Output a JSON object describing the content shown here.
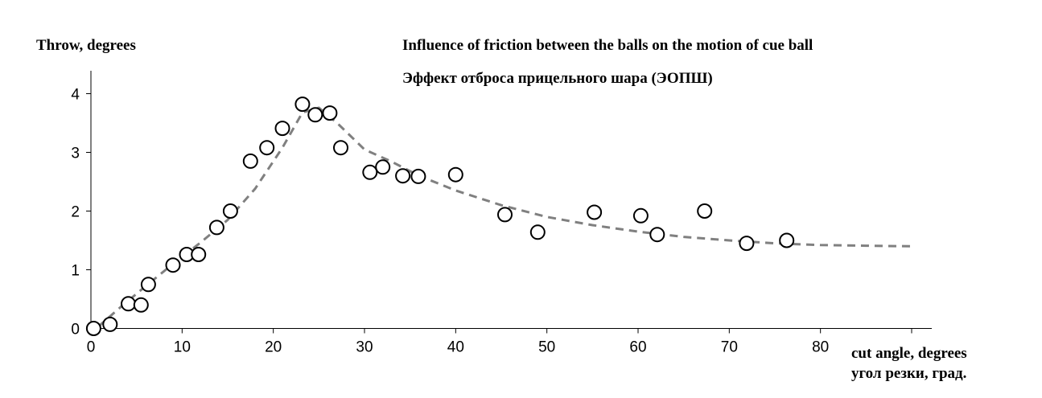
{
  "chart_data": {
    "type": "scatter",
    "title": "Influence of friction between the balls on the motion of cue ball",
    "subtitle": "Эффект отброса прицельного шара (ЭОПШ)",
    "ylabel": "Throw, degrees",
    "xlabel": "cut angle, degrees",
    "xlabel_secondary": "угол резки, град.",
    "xlim": [
      0,
      90
    ],
    "ylim": [
      0,
      4.4
    ],
    "x_ticks": [
      0,
      10,
      20,
      30,
      40,
      50,
      60,
      70,
      80,
      90
    ],
    "x_tick_labels": [
      "0",
      "10",
      "20",
      "30",
      "40",
      "50",
      "60",
      "70",
      "80",
      ""
    ],
    "y_ticks": [
      0,
      1,
      2,
      3,
      4
    ],
    "y_tick_labels": [
      "0",
      "1",
      "2",
      "3",
      "4"
    ],
    "grid": false,
    "legend": "none",
    "series": [
      {
        "type": "scatter",
        "marker": "open-circle",
        "x": [
          0.3,
          2.1,
          4.1,
          5.5,
          6.3,
          9.0,
          10.5,
          11.8,
          13.8,
          15.3,
          17.5,
          19.3,
          21.0,
          23.2,
          24.6,
          26.2,
          27.4,
          30.6,
          32.0,
          34.2,
          35.9,
          40.0,
          45.4,
          49.0,
          55.2,
          60.3,
          62.1,
          67.3,
          71.9,
          76.3
        ],
        "y": [
          0.0,
          0.07,
          0.42,
          0.4,
          0.75,
          1.08,
          1.26,
          1.26,
          1.72,
          2.0,
          2.85,
          3.08,
          3.41,
          3.82,
          3.64,
          3.67,
          3.08,
          2.66,
          2.75,
          2.6,
          2.59,
          2.62,
          1.94,
          1.64,
          1.98,
          1.92,
          1.6,
          2.0,
          1.45,
          1.5
        ]
      },
      {
        "type": "line",
        "style": "dashed",
        "color": "#808080",
        "x": [
          0.8,
          3,
          6,
          9,
          12,
          15,
          18,
          21,
          23.2,
          25,
          27,
          30,
          33,
          36,
          40,
          45,
          50,
          55,
          60,
          65,
          70,
          75,
          80,
          85,
          90
        ],
        "y": [
          0.03,
          0.33,
          0.72,
          1.1,
          1.46,
          1.85,
          2.38,
          3.08,
          3.68,
          3.76,
          3.5,
          3.05,
          2.84,
          2.6,
          2.35,
          2.1,
          1.9,
          1.76,
          1.65,
          1.56,
          1.5,
          1.45,
          1.42,
          1.41,
          1.4
        ]
      }
    ]
  }
}
